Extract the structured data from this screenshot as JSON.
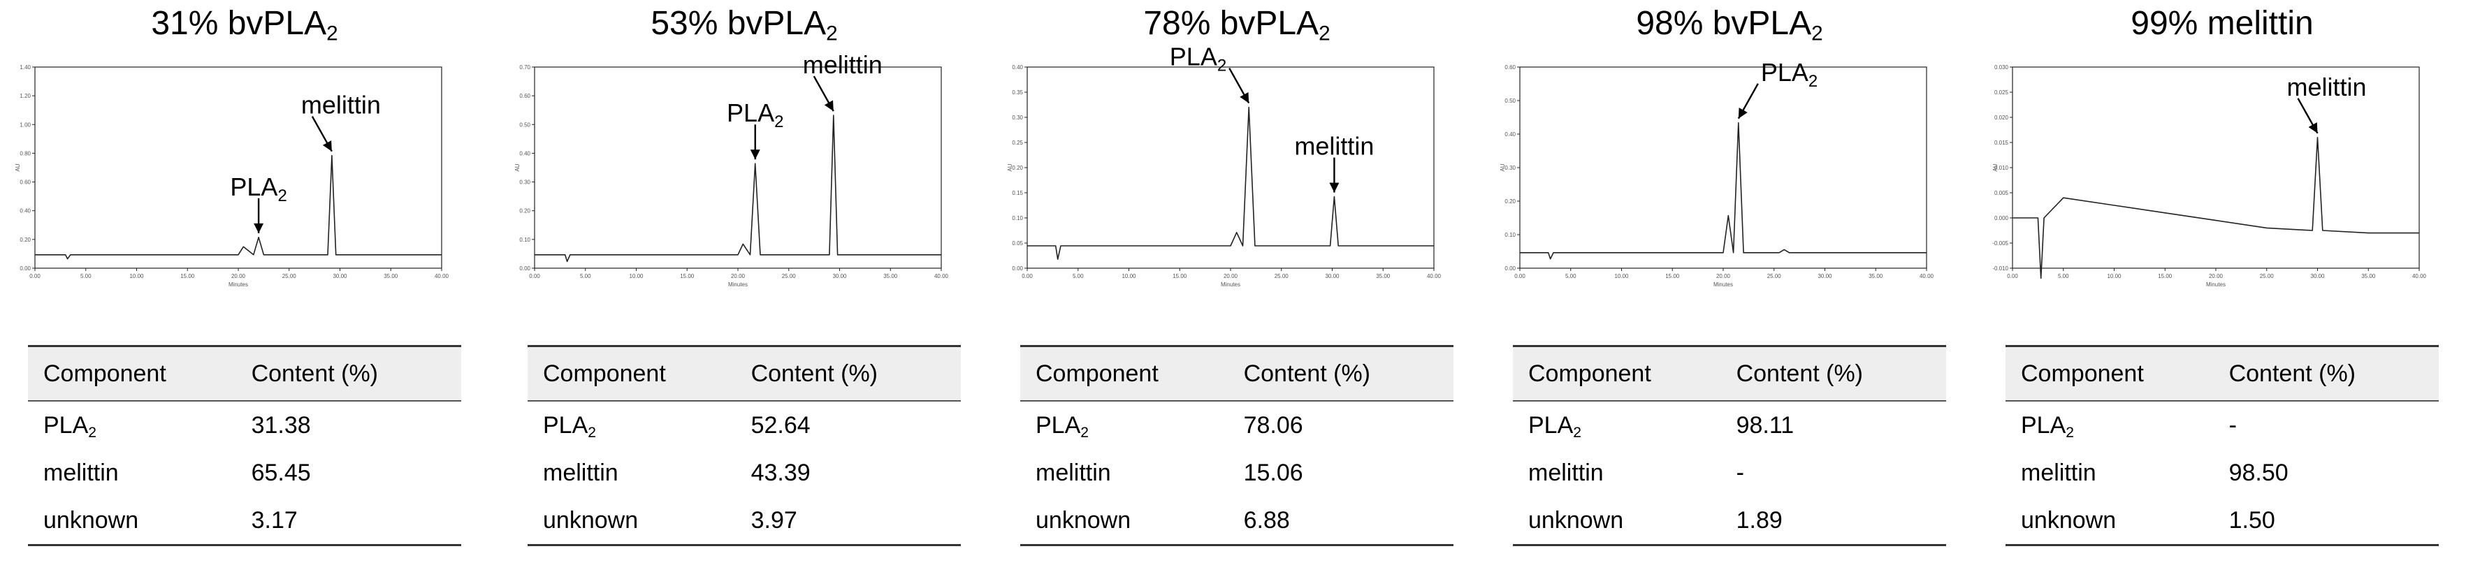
{
  "panels": [
    {
      "title_main": "31% bvPLA",
      "title_sub": "2",
      "chart_data": {
        "type": "line",
        "x": [
          0,
          3.0,
          3.2,
          3.5,
          20.0,
          20.5,
          21.5,
          22.0,
          22.5,
          28.8,
          29.2,
          29.6,
          35.0,
          40.0
        ],
        "y": [
          0.0,
          0.0,
          -0.03,
          0.0,
          0.0,
          0.06,
          0.0,
          0.13,
          0.0,
          0.0,
          0.74,
          0.0,
          0.0,
          0.0
        ],
        "xlim": [
          0,
          40
        ],
        "ylim": [
          -0.1,
          1.4
        ],
        "xticks": [
          "0.00",
          "5.00",
          "10.00",
          "15.00",
          "20.00",
          "25.00",
          "30.00",
          "35.00",
          "40.00"
        ],
        "yticks": [
          "0.00",
          "0.20",
          "0.40",
          "0.60",
          "0.80",
          "1.00",
          "1.20",
          "1.40"
        ],
        "xlabel": "Minutes",
        "ylabel": "AU",
        "annotations": [
          {
            "text": "PLA",
            "sub": "2",
            "x": 22.0,
            "y": 0.13
          },
          {
            "text": "melittin",
            "sub": "",
            "x": 29.2,
            "y": 0.74
          }
        ]
      },
      "table": {
        "headers": [
          "Component",
          "Content (%)"
        ],
        "rows": [
          {
            "name": "PLA",
            "sub": "2",
            "value": "31.38"
          },
          {
            "name": "melittin",
            "sub": "",
            "value": "65.45"
          },
          {
            "name": "unknown",
            "sub": "",
            "value": "3.17"
          }
        ]
      }
    },
    {
      "title_main": "53% bvPLA",
      "title_sub": "2",
      "chart_data": {
        "type": "line",
        "x": [
          0,
          3.0,
          3.2,
          3.5,
          20.0,
          20.5,
          21.2,
          21.7,
          22.2,
          29.0,
          29.4,
          29.8,
          35.0,
          40.0
        ],
        "y": [
          0.0,
          0.0,
          -0.025,
          0.0,
          0.0,
          0.04,
          0.0,
          0.34,
          0.0,
          0.0,
          0.52,
          0.0,
          0.0,
          0.0
        ],
        "xlim": [
          0,
          40
        ],
        "ylim": [
          -0.05,
          0.7
        ],
        "xticks": [
          "0.00",
          "5.00",
          "10.00",
          "15.00",
          "20.00",
          "25.00",
          "30.00",
          "35.00",
          "40.00"
        ],
        "yticks": [
          "0.00",
          "0.10",
          "0.20",
          "0.30",
          "0.40",
          "0.50",
          "0.60",
          "0.70"
        ],
        "xlabel": "Minutes",
        "ylabel": "AU",
        "annotations": [
          {
            "text": "PLA",
            "sub": "2",
            "x": 21.7,
            "y": 0.34
          },
          {
            "text": "melittin",
            "sub": "",
            "x": 29.4,
            "y": 0.52
          }
        ]
      },
      "table": {
        "headers": [
          "Component",
          "Content (%)"
        ],
        "rows": [
          {
            "name": "PLA",
            "sub": "2",
            "value": "52.64"
          },
          {
            "name": "melittin",
            "sub": "",
            "value": "43.39"
          },
          {
            "name": "unknown",
            "sub": "",
            "value": "3.97"
          }
        ]
      }
    },
    {
      "title_main": "78% bvPLA",
      "title_sub": "2",
      "chart_data": {
        "type": "line",
        "x": [
          0,
          2.8,
          3.0,
          3.3,
          20.0,
          20.6,
          21.2,
          21.8,
          22.4,
          29.8,
          30.2,
          30.6,
          35.0,
          40.0
        ],
        "y": [
          0.0,
          0.0,
          -0.03,
          0.0,
          0.0,
          0.03,
          0.0,
          0.31,
          0.0,
          0.0,
          0.11,
          0.0,
          0.0,
          0.0
        ],
        "xlim": [
          0,
          40
        ],
        "ylim": [
          -0.05,
          0.4
        ],
        "xticks": [
          "0.00",
          "5.00",
          "10.00",
          "15.00",
          "20.00",
          "25.00",
          "30.00",
          "35.00",
          "40.00"
        ],
        "yticks": [
          "0.00",
          "0.05",
          "0.10",
          "0.15",
          "0.20",
          "0.25",
          "0.30",
          "0.35",
          "0.40"
        ],
        "xlabel": "Minutes",
        "ylabel": "AU",
        "annotations": [
          {
            "text": "PLA",
            "sub": "2",
            "x": 21.8,
            "y": 0.31
          },
          {
            "text": "melittin",
            "sub": "",
            "x": 30.2,
            "y": 0.11
          }
        ]
      },
      "table": {
        "headers": [
          "Component",
          "Content (%)"
        ],
        "rows": [
          {
            "name": "PLA",
            "sub": "2",
            "value": "78.06"
          },
          {
            "name": "melittin",
            "sub": "",
            "value": "15.06"
          },
          {
            "name": "unknown",
            "sub": "",
            "value": "6.88"
          }
        ]
      }
    },
    {
      "title_main": "98% bvPLA",
      "title_sub": "2",
      "chart_data": {
        "type": "line",
        "x": [
          0,
          2.8,
          3.0,
          3.3,
          20.0,
          20.5,
          21.0,
          21.5,
          22.0,
          25.5,
          26.0,
          26.5,
          40.0
        ],
        "y": [
          0.0,
          0.0,
          -0.02,
          0.0,
          0.0,
          0.12,
          0.0,
          0.42,
          0.0,
          0.0,
          0.01,
          0.0,
          0.0
        ],
        "xlim": [
          0,
          40
        ],
        "ylim": [
          -0.05,
          0.6
        ],
        "xticks": [
          "0.00",
          "5.00",
          "10.00",
          "15.00",
          "20.00",
          "25.00",
          "30.00",
          "35.00",
          "40.00"
        ],
        "yticks": [
          "0.00",
          "0.10",
          "0.20",
          "0.30",
          "0.40",
          "0.50",
          "0.60"
        ],
        "xlabel": "Minutes",
        "ylabel": "AU",
        "annotations": [
          {
            "text": "PLA",
            "sub": "2",
            "x": 21.5,
            "y": 0.42
          }
        ]
      },
      "table": {
        "headers": [
          "Component",
          "Content (%)"
        ],
        "rows": [
          {
            "name": "PLA",
            "sub": "2",
            "value": "98.11"
          },
          {
            "name": "melittin",
            "sub": "",
            "value": "-"
          },
          {
            "name": "unknown",
            "sub": "",
            "value": "1.89"
          }
        ]
      }
    },
    {
      "title_main": "99% melittin",
      "title_sub": "",
      "chart_data": {
        "type": "line",
        "x": [
          0,
          2.5,
          2.8,
          3.1,
          5.0,
          10.0,
          15.0,
          20.0,
          25.0,
          29.5,
          30.0,
          30.5,
          35.0,
          40.0
        ],
        "y": [
          0.0,
          0.0,
          -0.012,
          0.0,
          0.004,
          0.0025,
          0.001,
          -0.0005,
          -0.002,
          -0.0025,
          0.016,
          -0.0025,
          -0.003,
          -0.003
        ],
        "xlim": [
          0,
          40
        ],
        "ylim": [
          -0.01,
          0.03
        ],
        "xticks": [
          "0.00",
          "5.00",
          "10.00",
          "15.00",
          "20.00",
          "25.00",
          "30.00",
          "35.00",
          "40.00"
        ],
        "yticks": [
          "-0.010",
          "-0.005",
          "0.000",
          "0.005",
          "0.010",
          "0.015",
          "0.020",
          "0.025",
          "0.030"
        ],
        "xlabel": "Minutes",
        "ylabel": "AU",
        "annotations": [
          {
            "text": "melittin",
            "sub": "",
            "x": 30.0,
            "y": 0.016
          }
        ]
      },
      "table": {
        "headers": [
          "Component",
          "Content (%)"
        ],
        "rows": [
          {
            "name": "PLA",
            "sub": "2",
            "value": "-"
          },
          {
            "name": "melittin",
            "sub": "",
            "value": "98.50"
          },
          {
            "name": "unknown",
            "sub": "",
            "value": "1.50"
          }
        ]
      }
    }
  ]
}
